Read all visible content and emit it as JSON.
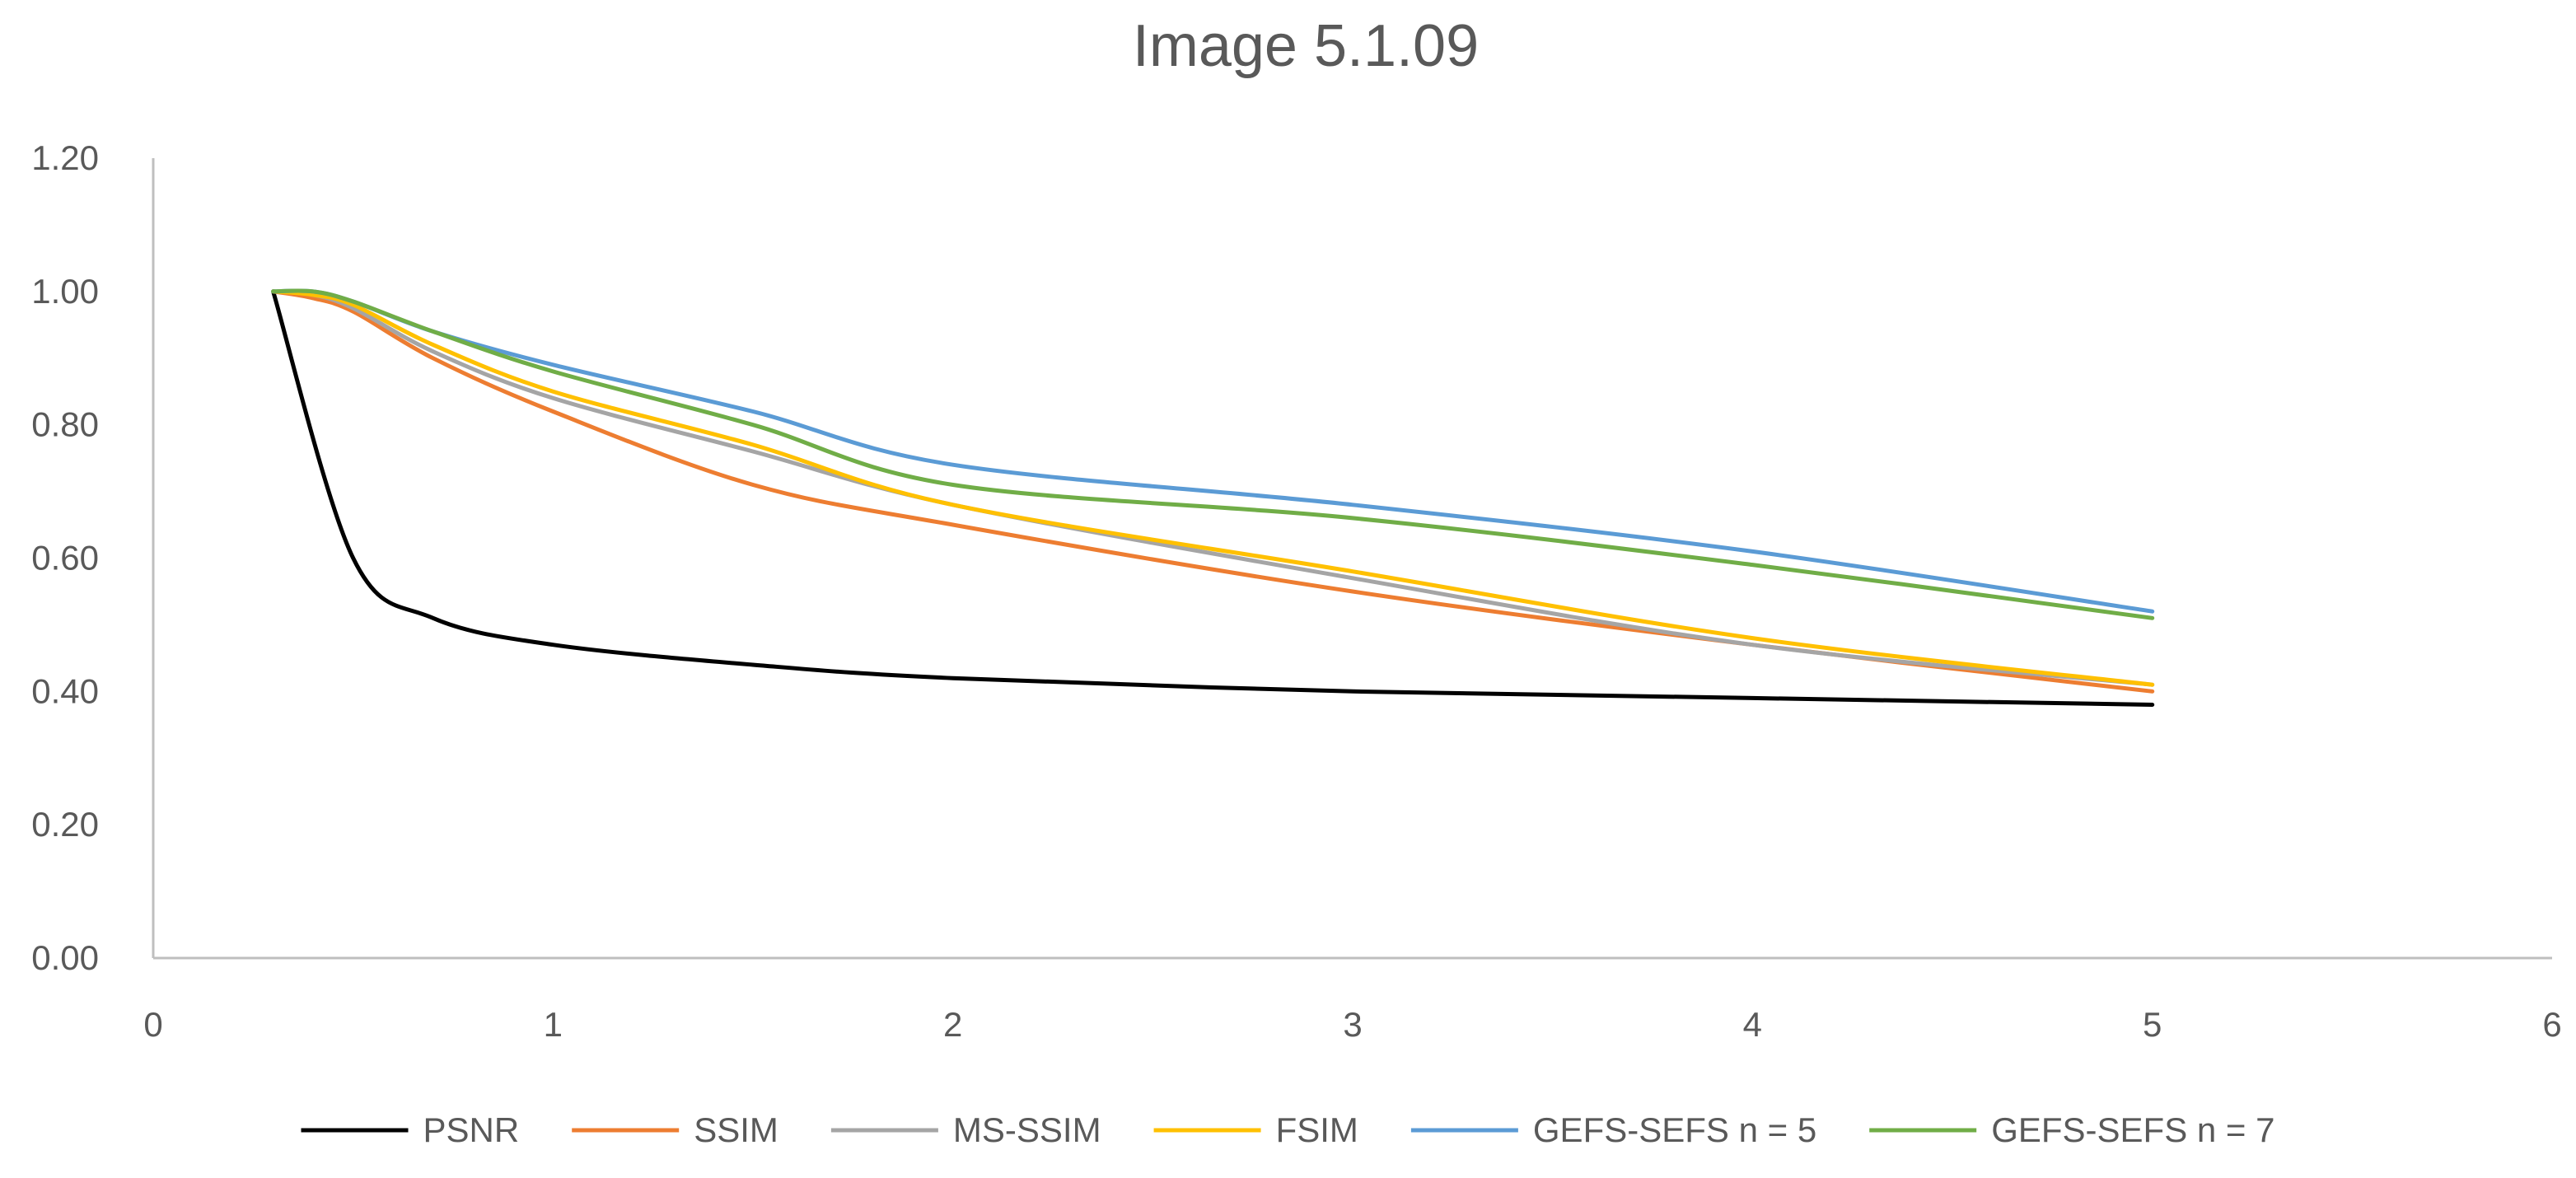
{
  "chart_data": {
    "type": "line",
    "title": "Image 5.1.09",
    "xlabel": "",
    "ylabel": "",
    "xlim": [
      0,
      6
    ],
    "ylim": [
      0,
      1.2
    ],
    "x_ticks": [
      "0",
      "1",
      "2",
      "3",
      "4",
      "5",
      "6"
    ],
    "y_ticks": [
      "0.00",
      "0.20",
      "0.40",
      "0.60",
      "0.80",
      "1.00",
      "1.20"
    ],
    "grid": false,
    "legend_position": "bottom",
    "series": [
      {
        "name": "PSNR",
        "color": "#000000",
        "points": [
          [
            0.3,
            1.0
          ],
          [
            0.5,
            0.6
          ],
          [
            0.7,
            0.51
          ],
          [
            1.0,
            0.47
          ],
          [
            1.5,
            0.44
          ],
          [
            2.0,
            0.42
          ],
          [
            3.0,
            0.4
          ],
          [
            4.0,
            0.39
          ],
          [
            5.0,
            0.38
          ]
        ]
      },
      {
        "name": "SSIM",
        "color": "#ed7d31",
        "points": [
          [
            0.3,
            1.0
          ],
          [
            0.4,
            0.99
          ],
          [
            0.5,
            0.97
          ],
          [
            0.7,
            0.9
          ],
          [
            1.0,
            0.82
          ],
          [
            1.5,
            0.71
          ],
          [
            2.0,
            0.65
          ],
          [
            3.0,
            0.55
          ],
          [
            4.0,
            0.47
          ],
          [
            5.0,
            0.4
          ]
        ]
      },
      {
        "name": "MS-SSIM",
        "color": "#a5a5a5",
        "points": [
          [
            0.3,
            1.0
          ],
          [
            0.4,
            0.995
          ],
          [
            0.5,
            0.975
          ],
          [
            0.7,
            0.91
          ],
          [
            1.0,
            0.84
          ],
          [
            1.5,
            0.76
          ],
          [
            2.0,
            0.68
          ],
          [
            3.0,
            0.57
          ],
          [
            4.0,
            0.47
          ],
          [
            5.0,
            0.41
          ]
        ]
      },
      {
        "name": "FSIM",
        "color": "#ffc000",
        "points": [
          [
            0.3,
            1.0
          ],
          [
            0.4,
            0.995
          ],
          [
            0.5,
            0.98
          ],
          [
            0.7,
            0.92
          ],
          [
            1.0,
            0.85
          ],
          [
            1.5,
            0.77
          ],
          [
            2.0,
            0.68
          ],
          [
            3.0,
            0.58
          ],
          [
            4.0,
            0.48
          ],
          [
            5.0,
            0.41
          ]
        ]
      },
      {
        "name": "GEFS-SEFS n = 5",
        "color": "#5b9bd5",
        "points": [
          [
            0.3,
            1.0
          ],
          [
            0.4,
            1.0
          ],
          [
            0.5,
            0.985
          ],
          [
            0.7,
            0.94
          ],
          [
            1.0,
            0.89
          ],
          [
            1.5,
            0.82
          ],
          [
            2.0,
            0.74
          ],
          [
            3.0,
            0.68
          ],
          [
            4.0,
            0.61
          ],
          [
            5.0,
            0.52
          ]
        ]
      },
      {
        "name": "GEFS-SEFS n = 7",
        "color": "#70ad47",
        "points": [
          [
            0.3,
            1.0
          ],
          [
            0.4,
            1.0
          ],
          [
            0.5,
            0.985
          ],
          [
            0.7,
            0.94
          ],
          [
            1.0,
            0.88
          ],
          [
            1.5,
            0.8
          ],
          [
            2.0,
            0.71
          ],
          [
            3.0,
            0.66
          ],
          [
            4.0,
            0.59
          ],
          [
            5.0,
            0.51
          ]
        ]
      }
    ]
  }
}
